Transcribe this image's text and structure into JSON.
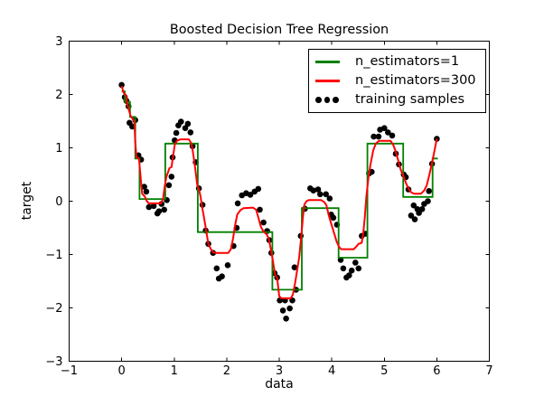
{
  "chart_data": {
    "type": "line",
    "title": "Boosted Decision Tree Regression",
    "xlabel": "data",
    "ylabel": "target",
    "xlim": [
      -1,
      7
    ],
    "ylim": [
      -3,
      3
    ],
    "xticks": [
      -1,
      0,
      1,
      2,
      3,
      4,
      5,
      6,
      7
    ],
    "yticks": [
      -3,
      -2,
      -1,
      0,
      1,
      2,
      3
    ],
    "xtick_labels": [
      "−1",
      "0",
      "1",
      "2",
      "3",
      "4",
      "5",
      "6",
      "7"
    ],
    "ytick_labels": [
      "−3",
      "−2",
      "−1",
      "0",
      "1",
      "2",
      "3"
    ],
    "grid": false,
    "legend_position": "upper right",
    "colors": {
      "tree1": "#008000",
      "boosted": "#ff0000",
      "samples": "#000000",
      "frame": "#000000",
      "background": "#ffffff"
    },
    "legend": [
      {
        "label": "n_estimators=1",
        "marker": "line",
        "color": "#008000"
      },
      {
        "label": "n_estimators=300",
        "marker": "line",
        "color": "#ff0000"
      },
      {
        "label": "training samples",
        "marker": "dots",
        "color": "#000000"
      }
    ],
    "series": [
      {
        "name": "n_estimators=1",
        "type": "step",
        "color": "#008000",
        "segments": [
          [
            0.0,
            0.06,
            2.06
          ],
          [
            0.06,
            0.16,
            1.86
          ],
          [
            0.16,
            0.26,
            1.58
          ],
          [
            0.26,
            0.34,
            0.8
          ],
          [
            0.34,
            0.83,
            0.04
          ],
          [
            0.83,
            1.45,
            1.08
          ],
          [
            1.45,
            2.87,
            -0.58
          ],
          [
            2.87,
            3.43,
            -1.66
          ],
          [
            3.43,
            4.13,
            -0.13
          ],
          [
            4.13,
            4.68,
            -1.06
          ],
          [
            4.68,
            5.36,
            1.08
          ],
          [
            5.36,
            5.92,
            0.08
          ],
          [
            5.92,
            6.02,
            0.8
          ]
        ]
      },
      {
        "name": "n_estimators=300",
        "type": "line",
        "color": "#ff0000",
        "points": [
          [
            0.0,
            2.16
          ],
          [
            0.04,
            2.03
          ],
          [
            0.08,
            1.99
          ],
          [
            0.11,
            1.82
          ],
          [
            0.14,
            1.7
          ],
          [
            0.17,
            1.6
          ],
          [
            0.21,
            1.54
          ],
          [
            0.24,
            1.5
          ],
          [
            0.26,
            1.12
          ],
          [
            0.28,
            0.82
          ],
          [
            0.33,
            0.8
          ],
          [
            0.36,
            0.45
          ],
          [
            0.39,
            0.14
          ],
          [
            0.44,
            0.09
          ],
          [
            0.48,
            0.0
          ],
          [
            0.52,
            -0.04
          ],
          [
            0.75,
            -0.04
          ],
          [
            0.79,
            0.05
          ],
          [
            0.82,
            0.28
          ],
          [
            0.85,
            0.45
          ],
          [
            0.91,
            0.62
          ],
          [
            0.95,
            0.64
          ],
          [
            0.98,
            0.85
          ],
          [
            1.01,
            1.05
          ],
          [
            1.05,
            1.13
          ],
          [
            1.12,
            1.16
          ],
          [
            1.28,
            1.16
          ],
          [
            1.33,
            1.08
          ],
          [
            1.36,
            0.9
          ],
          [
            1.4,
            0.62
          ],
          [
            1.44,
            0.3
          ],
          [
            1.47,
            0.22
          ],
          [
            1.5,
            0.1
          ],
          [
            1.53,
            -0.1
          ],
          [
            1.57,
            -0.32
          ],
          [
            1.61,
            -0.55
          ],
          [
            1.65,
            -0.8
          ],
          [
            1.7,
            -0.9
          ],
          [
            1.74,
            -0.96
          ],
          [
            1.8,
            -0.97
          ],
          [
            2.03,
            -0.97
          ],
          [
            2.08,
            -0.9
          ],
          [
            2.12,
            -0.7
          ],
          [
            2.16,
            -0.45
          ],
          [
            2.2,
            -0.25
          ],
          [
            2.26,
            -0.17
          ],
          [
            2.32,
            -0.13
          ],
          [
            2.5,
            -0.12
          ],
          [
            2.56,
            -0.16
          ],
          [
            2.6,
            -0.3
          ],
          [
            2.65,
            -0.48
          ],
          [
            2.7,
            -0.57
          ],
          [
            2.76,
            -0.62
          ],
          [
            2.8,
            -0.7
          ],
          [
            2.84,
            -0.9
          ],
          [
            2.88,
            -1.12
          ],
          [
            2.92,
            -1.38
          ],
          [
            2.96,
            -1.44
          ],
          [
            3.0,
            -1.78
          ],
          [
            3.04,
            -1.82
          ],
          [
            3.22,
            -1.82
          ],
          [
            3.26,
            -1.75
          ],
          [
            3.3,
            -1.55
          ],
          [
            3.34,
            -1.3
          ],
          [
            3.38,
            -1.05
          ],
          [
            3.42,
            -0.66
          ],
          [
            3.45,
            -0.3
          ],
          [
            3.48,
            -0.06
          ],
          [
            3.52,
            0.0
          ],
          [
            3.56,
            0.02
          ],
          [
            3.8,
            0.02
          ],
          [
            3.86,
            -0.02
          ],
          [
            3.9,
            -0.08
          ],
          [
            3.94,
            -0.25
          ],
          [
            3.99,
            -0.42
          ],
          [
            4.04,
            -0.58
          ],
          [
            4.09,
            -0.75
          ],
          [
            4.14,
            -0.86
          ],
          [
            4.18,
            -0.9
          ],
          [
            4.42,
            -0.9
          ],
          [
            4.47,
            -0.85
          ],
          [
            4.51,
            -0.8
          ],
          [
            4.57,
            -0.78
          ],
          [
            4.6,
            -0.6
          ],
          [
            4.63,
            -0.3
          ],
          [
            4.66,
            0.1
          ],
          [
            4.7,
            0.45
          ],
          [
            4.74,
            0.7
          ],
          [
            4.79,
            0.95
          ],
          [
            4.84,
            1.08
          ],
          [
            4.9,
            1.13
          ],
          [
            5.12,
            1.13
          ],
          [
            5.17,
            1.06
          ],
          [
            5.21,
            0.95
          ],
          [
            5.26,
            0.78
          ],
          [
            5.31,
            0.6
          ],
          [
            5.37,
            0.45
          ],
          [
            5.42,
            0.32
          ],
          [
            5.47,
            0.22
          ],
          [
            5.52,
            0.16
          ],
          [
            5.57,
            0.14
          ],
          [
            5.7,
            0.14
          ],
          [
            5.76,
            0.2
          ],
          [
            5.81,
            0.3
          ],
          [
            5.86,
            0.5
          ],
          [
            5.91,
            0.72
          ],
          [
            5.95,
            0.92
          ],
          [
            6.0,
            1.17
          ]
        ]
      },
      {
        "name": "training samples",
        "type": "scatter",
        "color": "#000000",
        "points": [
          [
            0.0,
            2.18
          ],
          [
            0.06,
            1.95
          ],
          [
            0.09,
            1.88
          ],
          [
            0.13,
            1.78
          ],
          [
            0.15,
            1.47
          ],
          [
            0.2,
            1.4
          ],
          [
            0.26,
            1.52
          ],
          [
            0.32,
            0.86
          ],
          [
            0.37,
            0.78
          ],
          [
            0.43,
            0.27
          ],
          [
            0.47,
            0.18
          ],
          [
            0.52,
            -0.11
          ],
          [
            0.61,
            -0.09
          ],
          [
            0.68,
            -0.23
          ],
          [
            0.71,
            -0.19
          ],
          [
            0.76,
            -0.05
          ],
          [
            0.81,
            -0.16
          ],
          [
            0.86,
            0.02
          ],
          [
            0.9,
            0.3
          ],
          [
            0.95,
            0.46
          ],
          [
            0.97,
            0.82
          ],
          [
            1.01,
            1.14
          ],
          [
            1.04,
            1.28
          ],
          [
            1.08,
            1.42
          ],
          [
            1.13,
            1.49
          ],
          [
            1.21,
            1.37
          ],
          [
            1.26,
            1.45
          ],
          [
            1.31,
            1.29
          ],
          [
            1.35,
            1.03
          ],
          [
            1.41,
            0.73
          ],
          [
            1.47,
            0.24
          ],
          [
            1.54,
            -0.07
          ],
          [
            1.6,
            -0.55
          ],
          [
            1.65,
            -0.8
          ],
          [
            1.74,
            -0.97
          ],
          [
            1.81,
            -1.26
          ],
          [
            1.85,
            -1.45
          ],
          [
            1.91,
            -1.41
          ],
          [
            2.02,
            -1.2
          ],
          [
            2.13,
            -0.84
          ],
          [
            2.19,
            -0.5
          ],
          [
            2.21,
            -0.04
          ],
          [
            2.29,
            0.11
          ],
          [
            2.37,
            0.15
          ],
          [
            2.45,
            0.12
          ],
          [
            2.53,
            0.18
          ],
          [
            2.6,
            0.23
          ],
          [
            2.63,
            -0.16
          ],
          [
            2.7,
            -0.4
          ],
          [
            2.77,
            -0.56
          ],
          [
            2.81,
            -0.73
          ],
          [
            2.85,
            -0.97
          ],
          [
            2.91,
            -1.35
          ],
          [
            2.96,
            -1.43
          ],
          [
            3.01,
            -1.86
          ],
          [
            3.07,
            -2.05
          ],
          [
            3.11,
            -1.86
          ],
          [
            3.13,
            -2.2
          ],
          [
            3.2,
            -2.01
          ],
          [
            3.25,
            -1.86
          ],
          [
            3.29,
            -1.24
          ],
          [
            3.32,
            -1.66
          ],
          [
            3.41,
            -0.65
          ],
          [
            3.49,
            -0.14
          ],
          [
            3.59,
            0.24
          ],
          [
            3.65,
            0.2
          ],
          [
            3.74,
            0.22
          ],
          [
            3.78,
            0.13
          ],
          [
            3.89,
            0.13
          ],
          [
            3.96,
            0.05
          ],
          [
            3.99,
            -0.25
          ],
          [
            4.03,
            -0.31
          ],
          [
            4.1,
            -0.44
          ],
          [
            4.17,
            -1.1
          ],
          [
            4.22,
            -1.26
          ],
          [
            4.28,
            -1.43
          ],
          [
            4.33,
            -1.39
          ],
          [
            4.38,
            -1.3
          ],
          [
            4.45,
            -1.15
          ],
          [
            4.51,
            -1.26
          ],
          [
            4.57,
            -0.65
          ],
          [
            4.64,
            -0.61
          ],
          [
            4.71,
            0.52
          ],
          [
            4.76,
            0.55
          ],
          [
            4.8,
            1.21
          ],
          [
            4.89,
            1.21
          ],
          [
            4.92,
            1.34
          ],
          [
            5.0,
            1.37
          ],
          [
            5.07,
            1.29
          ],
          [
            5.15,
            1.23
          ],
          [
            5.22,
            0.89
          ],
          [
            5.28,
            0.69
          ],
          [
            5.37,
            0.5
          ],
          [
            5.41,
            0.45
          ],
          [
            5.46,
            0.22
          ],
          [
            5.51,
            -0.27
          ],
          [
            5.56,
            -0.08
          ],
          [
            5.58,
            -0.34
          ],
          [
            5.63,
            -0.15
          ],
          [
            5.66,
            -0.22
          ],
          [
            5.72,
            -0.15
          ],
          [
            5.76,
            -0.05
          ],
          [
            5.83,
            0.0
          ],
          [
            5.85,
            0.19
          ],
          [
            5.91,
            0.7
          ],
          [
            6.0,
            1.17
          ]
        ]
      }
    ]
  }
}
